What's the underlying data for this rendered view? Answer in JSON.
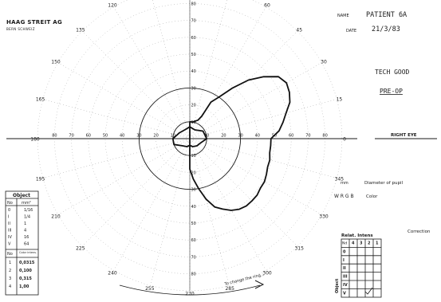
{
  "header": {
    "brand": "HAAG STREIT AG",
    "brand_sub": "BERN SCHWEIZ",
    "name_label": "NAME",
    "name_value": "PATIENT 6A",
    "date_label": "DATE",
    "date_value": "21/3/83",
    "note1": "TECH GOOD",
    "note2": "PRE-OP"
  },
  "eye": {
    "label": "RIGHT EYE"
  },
  "pupil": {
    "unit": "mm",
    "label": "Diameter of pupil"
  },
  "color": {
    "options": "W R G B",
    "label": "Color"
  },
  "correction": {
    "label": "Correction"
  },
  "object_table": {
    "title": "Object",
    "header": [
      "No",
      "mm²"
    ],
    "rows": [
      [
        "0",
        "1/16"
      ],
      [
        "I",
        "1/4"
      ],
      [
        "II",
        "1"
      ],
      [
        "III",
        "4"
      ],
      [
        "IV",
        "16"
      ],
      [
        "V",
        "64"
      ]
    ],
    "sub_header": [
      "No",
      "Color intens."
    ],
    "sub_rows": [
      [
        "1",
        "0,0315"
      ],
      [
        "2",
        "0,100"
      ],
      [
        "3",
        "0,315"
      ],
      [
        "4",
        "1,00"
      ]
    ]
  },
  "rel_intens": {
    "title": "Relat. Intens",
    "corner": "Nd",
    "cols": [
      "4",
      "3",
      "2",
      "1"
    ],
    "rows": [
      "0",
      "I",
      "II",
      "III",
      "IV",
      "V"
    ],
    "side_label": "Object"
  },
  "arc_note": "To change the ring...",
  "chart_data": {
    "type": "polar perimetry chart",
    "angle_labels": [
      "0",
      "15",
      "30",
      "45",
      "60",
      "75",
      "90",
      "105",
      "120",
      "135",
      "150",
      "165",
      "180",
      "195",
      "210",
      "225",
      "240",
      "255",
      "270",
      "285",
      "300",
      "315",
      "330",
      "345"
    ],
    "eccentricity_labels": [
      "90",
      "80",
      "70",
      "60",
      "50",
      "40",
      "30",
      "20",
      "10"
    ],
    "solid_circles_deg": [
      10,
      30
    ],
    "isopter_outer": [
      [
        0,
        48
      ],
      [
        5,
        53
      ],
      [
        10,
        56
      ],
      [
        15,
        59
      ],
      [
        20,
        63
      ],
      [
        25,
        65
      ],
      [
        30,
        66
      ],
      [
        35,
        64
      ],
      [
        40,
        57
      ],
      [
        45,
        49
      ],
      [
        50,
        39
      ],
      [
        55,
        30
      ],
      [
        60,
        25
      ],
      [
        62,
        15
      ],
      [
        66,
        12
      ],
      [
        72,
        11
      ],
      [
        80,
        10
      ],
      [
        90,
        10
      ],
      [
        270,
        18
      ],
      [
        275,
        24
      ],
      [
        280,
        30
      ],
      [
        285,
        37
      ],
      [
        290,
        43
      ],
      [
        295,
        46
      ],
      [
        300,
        49
      ],
      [
        305,
        51
      ],
      [
        310,
        52
      ],
      [
        315,
        52
      ],
      [
        320,
        52
      ],
      [
        325,
        51
      ],
      [
        330,
        51
      ],
      [
        335,
        50
      ],
      [
        340,
        49
      ],
      [
        345,
        49
      ],
      [
        350,
        48
      ],
      [
        355,
        48
      ],
      [
        360,
        48
      ]
    ],
    "isopter_inner": [
      [
        0,
        10
      ],
      [
        30,
        9
      ],
      [
        60,
        6
      ],
      [
        90,
        7
      ],
      [
        120,
        6
      ],
      [
        150,
        7
      ],
      [
        180,
        10
      ],
      [
        200,
        10
      ],
      [
        225,
        6
      ],
      [
        250,
        5
      ],
      [
        270,
        4
      ],
      [
        290,
        5
      ],
      [
        315,
        6
      ],
      [
        340,
        7
      ],
      [
        360,
        10
      ]
    ]
  }
}
